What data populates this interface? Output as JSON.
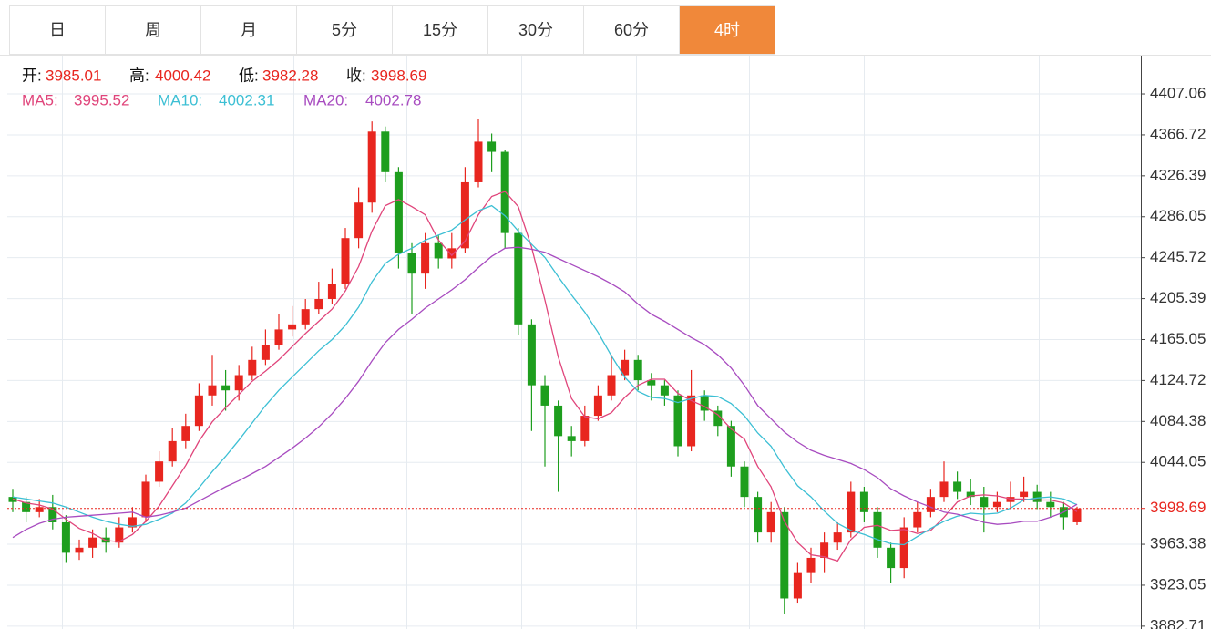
{
  "tabs": [
    "日",
    "周",
    "月",
    "5分",
    "15分",
    "30分",
    "60分",
    "4时"
  ],
  "active_tab": 7,
  "chart_data": {
    "type": "candlestick",
    "ohlc_labels": [
      "开:",
      "高:",
      "低:",
      "收:"
    ],
    "up_color": "#e8261f",
    "down_color": "#1e9e1e",
    "open": [
      4010,
      4005,
      3995,
      4000,
      3985,
      3955,
      3960,
      3970,
      3965,
      3980,
      3990,
      4025,
      4045,
      4065,
      4080,
      4110,
      4120,
      4115,
      4130,
      4145,
      4160,
      4175,
      4180,
      4195,
      4205,
      4220,
      4265,
      4300,
      4370,
      4330,
      4250,
      4230,
      4260,
      4245,
      4255,
      4320,
      4360,
      4350,
      4270,
      4180,
      4120,
      4100,
      4070,
      4065,
      4090,
      4110,
      4130,
      4145,
      4125,
      4120,
      4110,
      4060,
      4110,
      4095,
      4080,
      4040,
      4010,
      3975,
      3995,
      3910,
      3935,
      3950,
      3965,
      3975,
      4015,
      3995,
      3960,
      3940,
      3980,
      3995,
      4010,
      4025,
      4015,
      4010,
      4000,
      4005,
      4010,
      4015,
      4005,
      4000,
      3985.01
    ],
    "high": [
      4018,
      4010,
      4008,
      4012,
      3992,
      3968,
      3978,
      3980,
      3990,
      4000,
      4032,
      4055,
      4078,
      4092,
      4122,
      4150,
      4135,
      4140,
      4158,
      4175,
      4190,
      4198,
      4205,
      4222,
      4235,
      4275,
      4315,
      4380,
      4375,
      4335,
      4260,
      4270,
      4268,
      4270,
      4335,
      4382,
      4368,
      4352,
      4275,
      4185,
      4130,
      4105,
      4080,
      4100,
      4120,
      4150,
      4155,
      4150,
      4132,
      4125,
      4115,
      4135,
      4115,
      4100,
      4085,
      4045,
      4015,
      4005,
      4000,
      3945,
      3960,
      3975,
      3985,
      4025,
      4020,
      4000,
      3965,
      3990,
      4005,
      4018,
      4045,
      4035,
      4028,
      4020,
      4015,
      4025,
      4030,
      4022,
      4015,
      4005,
      4000.42
    ],
    "low": [
      3995,
      3985,
      3990,
      3978,
      3945,
      3948,
      3950,
      3955,
      3960,
      3975,
      3985,
      4020,
      4040,
      4058,
      4075,
      4100,
      4095,
      4105,
      4125,
      4140,
      4155,
      4168,
      4175,
      4190,
      4200,
      4215,
      4255,
      4290,
      4320,
      4235,
      4190,
      4215,
      4235,
      4235,
      4250,
      4315,
      4330,
      4255,
      4170,
      4075,
      4040,
      4015,
      4050,
      4060,
      4085,
      4105,
      4125,
      4115,
      4105,
      4100,
      4050,
      4055,
      4085,
      4070,
      4030,
      4000,
      3965,
      3965,
      3895,
      3905,
      3925,
      3935,
      3958,
      3970,
      3985,
      3950,
      3925,
      3930,
      3975,
      3990,
      4005,
      4008,
      4002,
      3975,
      3995,
      3998,
      4005,
      3998,
      3990,
      3978,
      3982.28
    ],
    "close": [
      4005,
      3995,
      4000,
      3985,
      3955,
      3960,
      3970,
      3965,
      3980,
      3990,
      4025,
      4045,
      4065,
      4080,
      4110,
      4120,
      4115,
      4130,
      4145,
      4160,
      4175,
      4180,
      4195,
      4205,
      4220,
      4265,
      4300,
      4370,
      4330,
      4250,
      4230,
      4260,
      4245,
      4255,
      4320,
      4360,
      4350,
      4270,
      4180,
      4120,
      4100,
      4070,
      4065,
      4090,
      4110,
      4130,
      4145,
      4125,
      4120,
      4110,
      4060,
      4110,
      4095,
      4080,
      4040,
      4010,
      3975,
      3995,
      3910,
      3935,
      3950,
      3965,
      3975,
      4015,
      3995,
      3960,
      3940,
      3980,
      3995,
      4010,
      4025,
      4015,
      4010,
      4000,
      4005,
      4010,
      4015,
      4005,
      4000,
      3990,
      3998.69
    ],
    "series": [
      {
        "name": "MA5:",
        "color": "#e0457b",
        "values": [
          4008,
          4004,
          4002,
          3998,
          3988,
          3979,
          3974,
          3967,
          3966,
          3973,
          3986,
          4001,
          4021,
          4041,
          4065,
          4084,
          4098,
          4111,
          4124,
          4134,
          4145,
          4158,
          4171,
          4183,
          4195,
          4213,
          4237,
          4272,
          4297,
          4303,
          4296,
          4288,
          4263,
          4248,
          4262,
          4288,
          4306,
          4311,
          4296,
          4256,
          4204,
          4148,
          4107,
          4089,
          4087,
          4093,
          4108,
          4120,
          4126,
          4126,
          4112,
          4105,
          4099,
          4091,
          4077,
          4067,
          4040,
          4020,
          3986,
          3965,
          3953,
          3951,
          3947,
          3968,
          3980,
          3982,
          3977,
          3978,
          3974,
          3977,
          3990,
          4005,
          4011,
          4012,
          4011,
          4008,
          4008,
          4007,
          4007,
          4004,
          3995.52
        ]
      },
      {
        "name": "MA10:",
        "color": "#3cbfd4",
        "values": [
          4010,
          4008,
          4006,
          4004,
          4000,
          3995,
          3990,
          3986,
          3983,
          3981,
          3983,
          3988,
          3994,
          4004,
          4019,
          4035,
          4050,
          4066,
          4083,
          4100,
          4115,
          4128,
          4141,
          4154,
          4165,
          4179,
          4197,
          4222,
          4240,
          4249,
          4255,
          4263,
          4268,
          4273,
          4283,
          4292,
          4297,
          4287,
          4272,
          4259,
          4246,
          4227,
          4209,
          4192,
          4172,
          4149,
          4128,
          4114,
          4108,
          4107,
          4103,
          4107,
          4110,
          4109,
          4102,
          4090,
          4073,
          4060,
          4039,
          4021,
          4010,
          3996,
          3984,
          3977,
          3973,
          3968,
          3964,
          3963,
          3971,
          3979,
          3986,
          3991,
          3994,
          3993,
          3994,
          3999,
          4007,
          4009,
          4010,
          4008,
          4002.31
        ]
      },
      {
        "name": "MA20:",
        "color": "#a84cc0",
        "values": [
          3970,
          3978,
          3984,
          3988,
          3990,
          3991,
          3992,
          3993,
          3994,
          3995,
          3990,
          3992,
          3995,
          3999,
          4006,
          4013,
          4020,
          4026,
          4033,
          4040,
          4049,
          4058,
          4068,
          4079,
          4092,
          4107,
          4124,
          4144,
          4162,
          4175,
          4185,
          4196,
          4205,
          4214,
          4224,
          4236,
          4247,
          4255,
          4256,
          4254,
          4251,
          4245,
          4239,
          4233,
          4227,
          4220,
          4212,
          4200,
          4190,
          4183,
          4175,
          4167,
          4160,
          4150,
          4137,
          4120,
          4100,
          4087,
          4074,
          4064,
          4056,
          4051,
          4047,
          4043,
          4037,
          4029,
          4018,
          4011,
          4005,
          4000,
          3995,
          3993,
          3989,
          3985,
          3983,
          3984,
          3986,
          3986,
          3990,
          3995,
          4002.78
        ]
      }
    ],
    "ylim": [
      3879.9,
      4443.9
    ],
    "yticks": [
      4407.06,
      4366.72,
      4326.39,
      4286.05,
      4245.72,
      4205.39,
      4165.05,
      4124.72,
      4084.38,
      4044.05,
      3963.38,
      3923.05,
      3882.71
    ],
    "grid": true
  }
}
